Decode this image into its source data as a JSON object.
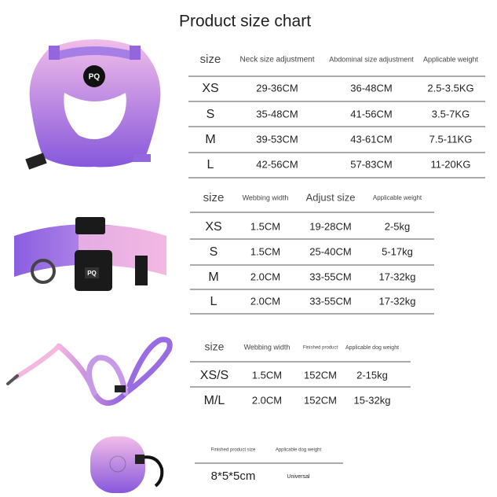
{
  "title": "Product size chart",
  "tables": [
    {
      "header": [
        "size",
        "Neck size adjustment",
        "Abdominal size adjustment",
        "Applicable weight"
      ],
      "rows": [
        [
          "XS",
          "29-36CM",
          "36-48CM",
          "2.5-3.5KG"
        ],
        [
          "S",
          "35-48CM",
          "41-56CM",
          "3.5-7KG"
        ],
        [
          "M",
          "39-53CM",
          "43-61CM",
          "7.5-11KG"
        ],
        [
          "L",
          "42-56CM",
          "57-83CM",
          "11-20KG"
        ]
      ]
    },
    {
      "header": [
        "size",
        "Webbing width",
        "Adjust size",
        "Applicable weight"
      ],
      "rows": [
        [
          "XS",
          "1.5CM",
          "19-28CM",
          "2-5kg"
        ],
        [
          "S",
          "1.5CM",
          "25-40CM",
          "5-17kg"
        ],
        [
          "M",
          "2.0CM",
          "33-55CM",
          "17-32kg"
        ],
        [
          "L",
          "2.0CM",
          "33-55CM",
          "17-32kg"
        ]
      ]
    },
    {
      "header": [
        "size",
        "Webbing width",
        "Finished product",
        "Applicable dog weight"
      ],
      "rows": [
        [
          "XS/S",
          "1.5CM",
          "152CM",
          "2-15kg"
        ],
        [
          "M/L",
          "2.0CM",
          "152CM",
          "15-32kg"
        ]
      ]
    },
    {
      "header": [
        "Finished product size",
        "Applicable dog weight"
      ],
      "rows": [
        [
          "8*5*5cm",
          "Universal"
        ]
      ]
    }
  ]
}
